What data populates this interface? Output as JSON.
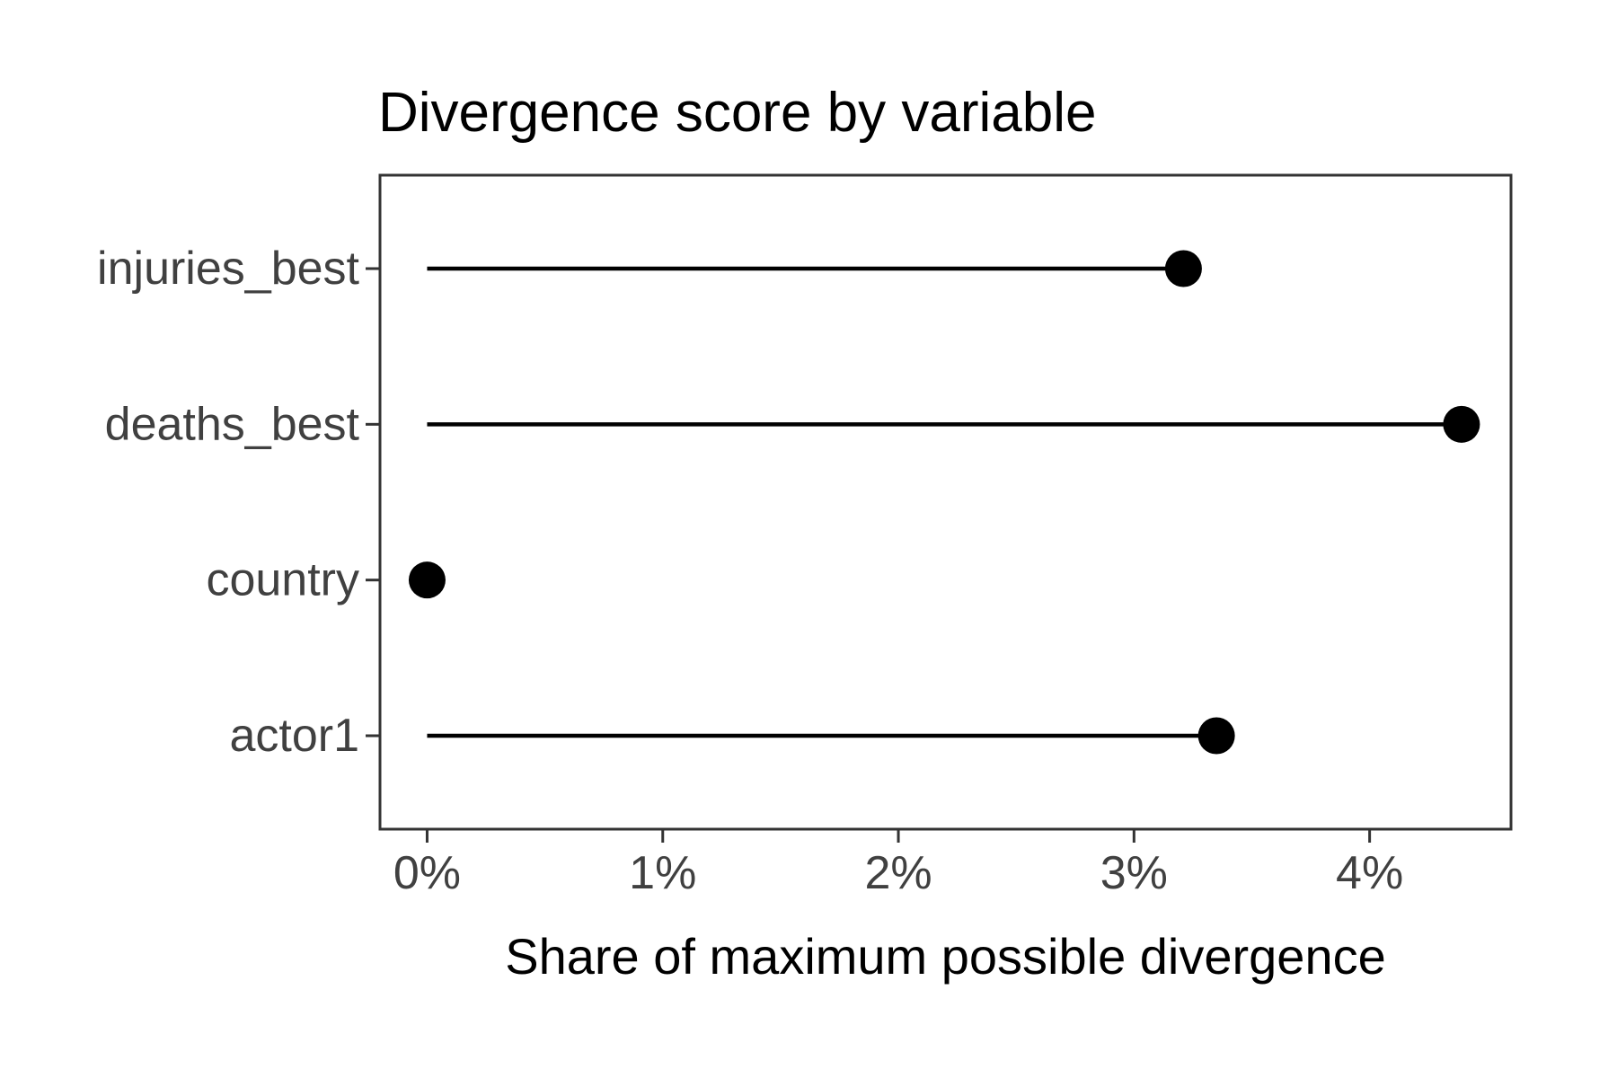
{
  "figure": {
    "background": "#ffffff"
  },
  "chart_data": {
    "type": "bar",
    "variant": "horizontal-lollipop",
    "title": "Divergence score by variable",
    "xlabel": "Share of maximum possible divergence",
    "ylabel": "",
    "categories": [
      "injuries_best",
      "deaths_best",
      "country",
      "actor1"
    ],
    "values": [
      3.21,
      4.39,
      0.0,
      3.35
    ],
    "value_unit": "percent",
    "x_ticks": [
      0,
      1,
      2,
      3,
      4
    ],
    "x_tick_labels": [
      "0%",
      "1%",
      "2%",
      "3%",
      "4%"
    ],
    "xlim": [
      -0.2,
      4.6
    ],
    "grid": false,
    "legend": "none",
    "styles": {
      "point_color": "#000000",
      "stem_color": "#000000",
      "panel_border_color": "#333333",
      "axis_tick_color": "#333333",
      "tick_label_color": "#404040",
      "title_color": "#000000",
      "axis_title_color": "#000000",
      "point_radius": 20.5,
      "stem_width": 4.5
    }
  }
}
